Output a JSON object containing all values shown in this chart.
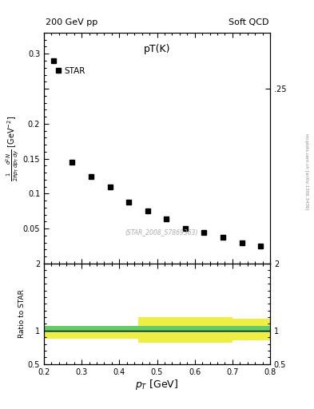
{
  "title_left": "200 GeV pp",
  "title_right": "Soft QCD",
  "plot_title": "pT(K)",
  "ylabel_ratio": "Ratio to STAR",
  "watermark": "(STAR_2008_S7869363)",
  "side_text": "mcplots.cern.ch [arXiv:1306.3436]",
  "legend_label": "STAR",
  "data_x": [
    0.225,
    0.275,
    0.325,
    0.375,
    0.425,
    0.475,
    0.525,
    0.575,
    0.625,
    0.675,
    0.725,
    0.775
  ],
  "data_y": [
    0.29,
    0.145,
    0.125,
    0.11,
    0.088,
    0.075,
    0.064,
    0.05,
    0.045,
    0.038,
    0.03,
    0.025
  ],
  "ratio_x_edges": [
    0.2,
    0.25,
    0.3,
    0.35,
    0.4,
    0.45,
    0.5,
    0.55,
    0.6,
    0.65,
    0.7,
    0.75,
    0.8
  ],
  "ratio_green_lo": [
    0.97,
    0.97,
    0.97,
    0.97,
    0.97,
    0.97,
    0.97,
    0.97,
    0.97,
    0.97,
    0.97,
    0.97
  ],
  "ratio_green_hi": [
    1.07,
    1.07,
    1.07,
    1.07,
    1.07,
    1.07,
    1.07,
    1.07,
    1.07,
    1.07,
    1.07,
    1.07
  ],
  "ratio_yellow_lo": [
    0.88,
    0.88,
    0.88,
    0.88,
    0.88,
    0.82,
    0.82,
    0.82,
    0.82,
    0.82,
    0.85,
    0.85
  ],
  "ratio_yellow_hi": [
    1.07,
    1.07,
    1.07,
    1.07,
    1.07,
    1.2,
    1.2,
    1.2,
    1.2,
    1.2,
    1.18,
    1.18
  ],
  "xlim": [
    0.2,
    0.8
  ],
  "ylim_main": [
    0.0,
    0.33
  ],
  "ylim_ratio": [
    0.5,
    2.0
  ],
  "main_yticks": [
    0.0,
    0.05,
    0.1,
    0.15,
    0.2,
    0.25,
    0.3
  ],
  "main_ytick_labels": [
    "",
    "0.05",
    "0.1",
    "0.15",
    "0.2",
    "",
    "0.3"
  ],
  "ratio_yticks": [
    0.5,
    1.0,
    2.0
  ],
  "ratio_ytick_labels": [
    "0.5",
    "1",
    "2"
  ],
  "xticks": [
    0.2,
    0.3,
    0.4,
    0.5,
    0.6,
    0.7,
    0.8
  ],
  "xtick_labels": [
    "0.2",
    "0.3",
    "0.4",
    "0.5",
    "0.6",
    "0.7",
    "0.8"
  ],
  "marker_color": "black",
  "marker_style": "s",
  "marker_size": 4,
  "green_color": "#66CC66",
  "yellow_color": "#EEEE44",
  "bg_color": "#ffffff"
}
